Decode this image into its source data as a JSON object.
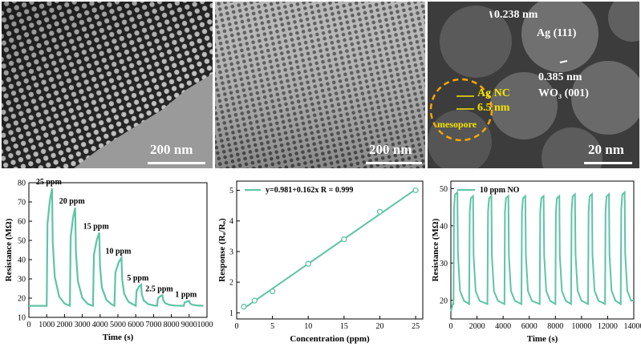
{
  "top_panels": [
    {
      "scale": "200 nm"
    },
    {
      "scale": "200 nm"
    },
    {
      "scale": "20 nm",
      "labels": {
        "ag_spacing": "0.238 nm",
        "ag_plane": "Ag (111)",
        "wo3_spacing": "0.385 nm",
        "wo3_plane": "WO₃ (001)",
        "agnc": "Ag NC",
        "size": "6.5 nm",
        "mesopore": "mesopore"
      }
    }
  ],
  "colors": {
    "curve": "#5ec4a6",
    "axis": "#000000",
    "yellow": "#f5e400"
  },
  "chart_data": [
    {
      "type": "line",
      "xlabel": "Time (s)",
      "ylabel": "Resistance (MΩ)",
      "xlim": [
        0,
        10000
      ],
      "ylim": [
        10,
        80
      ],
      "xticks": [
        "0",
        "1000",
        "2000",
        "3000",
        "4000",
        "5000",
        "6000",
        "7000",
        "8000",
        "9000",
        "10000"
      ],
      "yticks": [
        "10",
        "20",
        "30",
        "40",
        "50",
        "60",
        "70",
        "80"
      ],
      "baseline": 16,
      "pulses": [
        {
          "label": "25 ppm",
          "start": 1000,
          "end": 1300,
          "peak": 77
        },
        {
          "label": "20 ppm",
          "start": 2300,
          "end": 2600,
          "peak": 67
        },
        {
          "label": "15 ppm",
          "start": 3600,
          "end": 3950,
          "peak": 54
        },
        {
          "label": "10 ppm",
          "start": 4800,
          "end": 5200,
          "peak": 41
        },
        {
          "label": "5 ppm",
          "start": 6000,
          "end": 6300,
          "peak": 27
        },
        {
          "label": "2.5 ppm",
          "start": 7200,
          "end": 7500,
          "peak": 21.5
        },
        {
          "label": "1 ppm",
          "start": 8700,
          "end": 9000,
          "peak": 18.5
        }
      ]
    },
    {
      "type": "scatter",
      "xlabel": "Concentration (ppm)",
      "ylabel": "Response (Rₐ/Rₒ)",
      "xlim": [
        0,
        26
      ],
      "ylim": [
        0.8,
        5.3
      ],
      "xticks": [
        "0",
        "5",
        "10",
        "15",
        "20",
        "25"
      ],
      "yticks": [
        "1",
        "2",
        "3",
        "4",
        "5"
      ],
      "legend": "y=0.981+0.162x  R = 0.999",
      "fit": {
        "intercept": 0.981,
        "slope": 0.162
      },
      "x": [
        1,
        2.5,
        5,
        10,
        15,
        20,
        25
      ],
      "y": [
        1.2,
        1.4,
        1.7,
        2.6,
        3.4,
        4.3,
        5.0
      ]
    },
    {
      "type": "line",
      "xlabel": "Time (s)",
      "ylabel": "Resistance (MΩ)",
      "xlim": [
        0,
        14000
      ],
      "ylim": [
        15,
        52
      ],
      "xticks": [
        "0",
        "2000",
        "4000",
        "6000",
        "8000",
        "10000",
        "12000",
        "14000"
      ],
      "yticks": [
        "20",
        "30",
        "40",
        "50"
      ],
      "legend": "10 ppm NO",
      "baseline": 19,
      "pulses": [
        {
          "start": 200,
          "peak": 49
        },
        {
          "start": 1400,
          "peak": 48
        },
        {
          "start": 2800,
          "peak": 48
        },
        {
          "start": 4100,
          "peak": 48
        },
        {
          "start": 5400,
          "peak": 48
        },
        {
          "start": 6800,
          "peak": 48
        },
        {
          "start": 8000,
          "peak": 48
        },
        {
          "start": 9200,
          "peak": 48.5
        },
        {
          "start": 10500,
          "peak": 48.5
        },
        {
          "start": 11800,
          "peak": 48.5
        },
        {
          "start": 13000,
          "peak": 49
        }
      ],
      "pulse_width": 300
    }
  ]
}
